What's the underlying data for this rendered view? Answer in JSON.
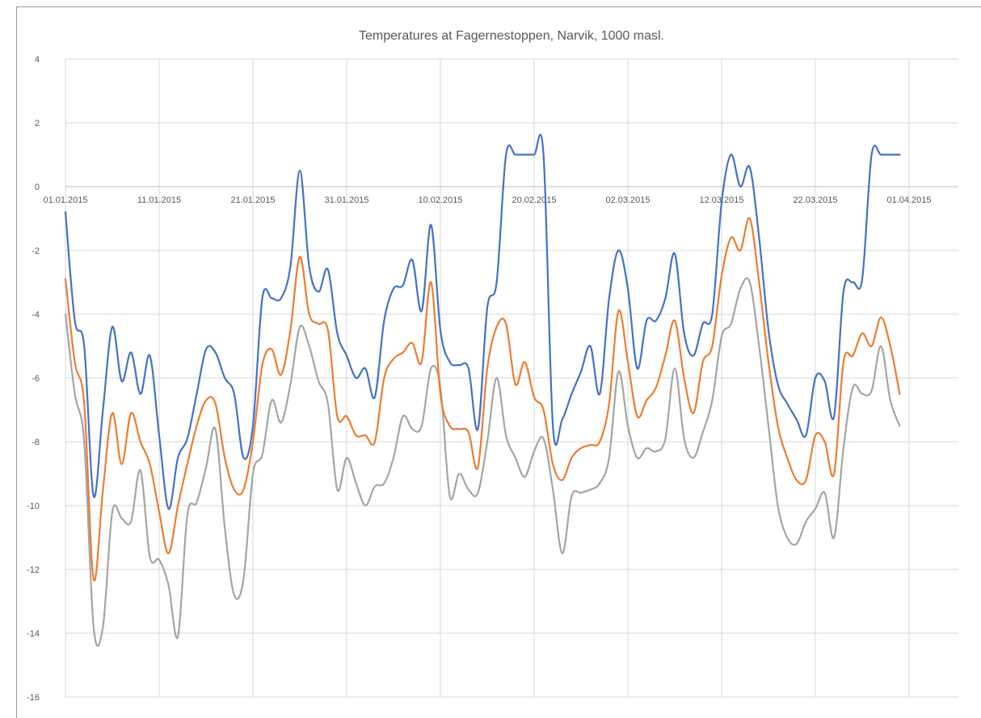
{
  "chart_data": {
    "type": "line",
    "title": "Temperatures at Fagernestoppen, Narvik, 1000 masl.",
    "xlabel": "",
    "ylabel": "",
    "ylim": [
      -16,
      4
    ],
    "yticks": [
      4,
      2,
      0,
      -2,
      -4,
      -6,
      -8,
      -10,
      -12,
      -14,
      -16
    ],
    "x_start": "01.01.2015",
    "x_end": "31.03.2015",
    "xticks": [
      "01.01.2015",
      "11.01.2015",
      "21.01.2015",
      "31.01.2015",
      "10.02.2015",
      "20.02.2015",
      "02.03.2015",
      "12.03.2015",
      "22.03.2015",
      "01.04.2015"
    ],
    "grid": true,
    "legend": "none",
    "series": [
      {
        "color": "#4472c4",
        "values": [
          -0.8,
          -4.2,
          -5.0,
          -9.7,
          -7.0,
          -4.4,
          -6.1,
          -5.2,
          -6.5,
          -5.3,
          -7.8,
          -10.1,
          -8.5,
          -7.9,
          -6.5,
          -5.1,
          -5.2,
          -6.0,
          -6.5,
          -8.5,
          -7.5,
          -3.5,
          -3.5,
          -3.5,
          -2.5,
          0.5,
          -2.5,
          -3.3,
          -2.6,
          -4.6,
          -5.3,
          -6.0,
          -5.7,
          -6.6,
          -4.2,
          -3.2,
          -3.1,
          -2.3,
          -3.9,
          -1.2,
          -4.5,
          -5.5,
          -5.6,
          -5.7,
          -7.6,
          -3.8,
          -3.0,
          1.0,
          1.0,
          1.0,
          1.0,
          1.0,
          -7.5,
          -7.3,
          -6.5,
          -5.8,
          -5.0,
          -6.5,
          -3.5,
          -2.0,
          -3.2,
          -5.7,
          -4.2,
          -4.2,
          -3.5,
          -2.1,
          -4.6,
          -5.3,
          -4.3,
          -4.0,
          -0.5,
          1.0,
          0.0,
          0.6,
          -1.6,
          -4.5,
          -6.2,
          -6.8,
          -7.3,
          -7.8,
          -6.0,
          -6.1,
          -7.2,
          -3.3,
          -3.0,
          -2.9,
          1.0,
          1.0,
          1.0,
          1.0
        ]
      },
      {
        "color": "#ed7d31",
        "values": [
          -2.9,
          -5.5,
          -6.8,
          -12.3,
          -9.5,
          -7.1,
          -8.7,
          -7.1,
          -8.0,
          -8.7,
          -10.2,
          -11.5,
          -10.0,
          -8.7,
          -7.5,
          -6.7,
          -6.8,
          -8.5,
          -9.5,
          -9.5,
          -8.0,
          -5.6,
          -5.1,
          -5.9,
          -4.5,
          -2.2,
          -4.0,
          -4.3,
          -4.5,
          -7.2,
          -7.2,
          -7.8,
          -7.8,
          -8.0,
          -6.0,
          -5.4,
          -5.2,
          -4.9,
          -5.5,
          -3.0,
          -6.5,
          -7.5,
          -7.6,
          -7.7,
          -8.8,
          -5.7,
          -4.4,
          -4.3,
          -6.2,
          -5.5,
          -6.6,
          -7.0,
          -8.7,
          -9.2,
          -8.5,
          -8.2,
          -8.1,
          -8.0,
          -6.8,
          -3.9,
          -5.5,
          -7.2,
          -6.7,
          -6.3,
          -5.3,
          -4.2,
          -6.0,
          -7.1,
          -5.5,
          -5.0,
          -2.8,
          -1.6,
          -2.0,
          -1.0,
          -3.0,
          -5.5,
          -7.5,
          -8.5,
          -9.2,
          -9.2,
          -7.8,
          -8.0,
          -9.0,
          -5.5,
          -5.3,
          -4.6,
          -5.0,
          -4.1,
          -5.0,
          -6.5
        ]
      },
      {
        "color": "#a5a5a5",
        "values": [
          -4.0,
          -6.5,
          -8.0,
          -13.8,
          -13.8,
          -10.2,
          -10.4,
          -10.5,
          -8.9,
          -11.6,
          -11.7,
          -12.5,
          -14.1,
          -10.3,
          -9.9,
          -8.8,
          -7.6,
          -10.7,
          -12.8,
          -12.3,
          -9.0,
          -8.4,
          -6.7,
          -7.4,
          -6.2,
          -4.4,
          -5.0,
          -6.1,
          -6.8,
          -9.5,
          -8.5,
          -9.3,
          -10.0,
          -9.4,
          -9.3,
          -8.5,
          -7.2,
          -7.6,
          -7.5,
          -5.7,
          -6.3,
          -9.7,
          -9.0,
          -9.5,
          -9.6,
          -8.0,
          -6.0,
          -7.8,
          -8.5,
          -9.1,
          -8.3,
          -7.9,
          -9.5,
          -11.5,
          -9.7,
          -9.6,
          -9.5,
          -9.3,
          -8.5,
          -5.8,
          -7.5,
          -8.5,
          -8.2,
          -8.3,
          -7.9,
          -5.7,
          -7.9,
          -8.5,
          -7.7,
          -6.7,
          -4.7,
          -4.3,
          -3.2,
          -3.0,
          -5.0,
          -7.5,
          -10.0,
          -11.0,
          -11.2,
          -10.5,
          -10.1,
          -9.6,
          -11.0,
          -8.2,
          -6.3,
          -6.5,
          -6.4,
          -5.0,
          -6.7,
          -7.5
        ]
      }
    ]
  }
}
